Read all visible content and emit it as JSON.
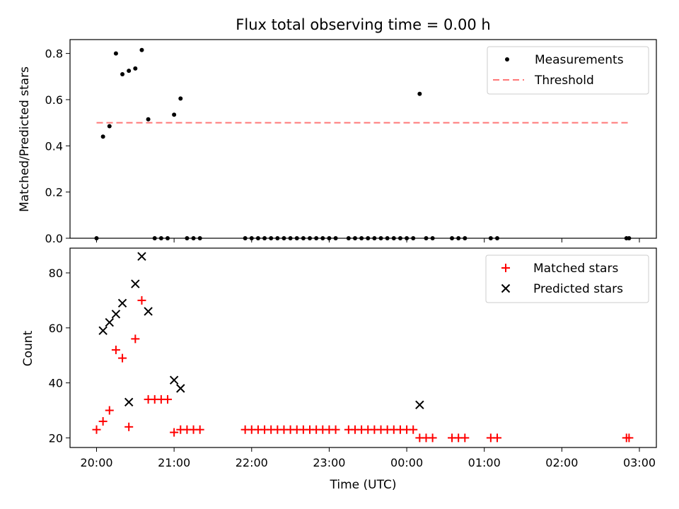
{
  "chart_data": [
    {
      "type": "scatter",
      "title": "Flux total observing time = 0.00 h",
      "ylabel": "Matched/Predicted stars",
      "xlabel": "",
      "ylim": [
        0,
        0.86
      ],
      "yticks": [
        "0.0",
        "0.2",
        "0.4",
        "0.6",
        "0.8"
      ],
      "legend": {
        "placement": "upper right",
        "entries": [
          "Measurements",
          "Threshold"
        ]
      },
      "series": [
        {
          "name": "Measurements",
          "marker": "dot",
          "color": "#000000",
          "points": [
            [
              "20:00",
              0
            ],
            [
              "20:05",
              0.44
            ],
            [
              "20:10",
              0.485
            ],
            [
              "20:15",
              0.8
            ],
            [
              "20:20",
              0.71
            ],
            [
              "20:25",
              0.725
            ],
            [
              "20:30",
              0.735
            ],
            [
              "20:35",
              0.815
            ],
            [
              "20:40",
              0.515
            ],
            [
              "20:45",
              0
            ],
            [
              "20:50",
              0
            ],
            [
              "20:55",
              0
            ],
            [
              "21:00",
              0.535
            ],
            [
              "21:05",
              0.605
            ],
            [
              "21:10",
              0
            ],
            [
              "21:15",
              0
            ],
            [
              "21:20",
              0
            ],
            [
              "21:55",
              0
            ],
            [
              "22:00",
              0
            ],
            [
              "22:05",
              0
            ],
            [
              "22:10",
              0
            ],
            [
              "22:15",
              0
            ],
            [
              "22:20",
              0
            ],
            [
              "22:25",
              0
            ],
            [
              "22:30",
              0
            ],
            [
              "22:35",
              0
            ],
            [
              "22:40",
              0
            ],
            [
              "22:45",
              0
            ],
            [
              "22:50",
              0
            ],
            [
              "22:55",
              0
            ],
            [
              "23:00",
              0
            ],
            [
              "23:05",
              0
            ],
            [
              "23:15",
              0
            ],
            [
              "23:20",
              0
            ],
            [
              "23:25",
              0
            ],
            [
              "23:30",
              0
            ],
            [
              "23:35",
              0
            ],
            [
              "23:40",
              0
            ],
            [
              "23:45",
              0
            ],
            [
              "23:50",
              0
            ],
            [
              "23:55",
              0
            ],
            [
              "00:00",
              0
            ],
            [
              "00:05",
              0
            ],
            [
              "00:10",
              0.625
            ],
            [
              "00:15",
              0
            ],
            [
              "00:20",
              0
            ],
            [
              "00:35",
              0
            ],
            [
              "00:40",
              0
            ],
            [
              "00:45",
              0
            ],
            [
              "01:05",
              0
            ],
            [
              "01:10",
              0
            ],
            [
              "02:50",
              0
            ],
            [
              "02:52",
              0
            ]
          ]
        },
        {
          "name": "Threshold",
          "type": "line",
          "style": "dashed",
          "color": "#ff7777",
          "points": [
            [
              "20:00",
              0.5
            ],
            [
              "02:52",
              0.5
            ]
          ]
        }
      ]
    },
    {
      "type": "scatter",
      "title": "",
      "xlabel": "Time (UTC)",
      "ylabel": "Count",
      "ylim": [
        16.5,
        89
      ],
      "yticks": [
        "20",
        "40",
        "60",
        "80"
      ],
      "xticks": [
        "20:00",
        "21:00",
        "22:00",
        "23:00",
        "00:00",
        "01:00",
        "02:00",
        "03:00"
      ],
      "legend": {
        "placement": "upper right",
        "entries": [
          "Matched stars",
          "Predicted stars"
        ]
      },
      "series": [
        {
          "name": "Matched stars",
          "marker": "plus",
          "color": "#ff0000",
          "points": [
            [
              "20:00",
              23
            ],
            [
              "20:05",
              26
            ],
            [
              "20:10",
              30
            ],
            [
              "20:15",
              52
            ],
            [
              "20:20",
              49
            ],
            [
              "20:25",
              24
            ],
            [
              "20:30",
              56
            ],
            [
              "20:35",
              70
            ],
            [
              "20:40",
              34
            ],
            [
              "20:45",
              34
            ],
            [
              "20:50",
              34
            ],
            [
              "20:55",
              34
            ],
            [
              "21:00",
              22
            ],
            [
              "21:05",
              23
            ],
            [
              "21:10",
              23
            ],
            [
              "21:15",
              23
            ],
            [
              "21:20",
              23
            ],
            [
              "21:55",
              23
            ],
            [
              "22:00",
              23
            ],
            [
              "22:05",
              23
            ],
            [
              "22:10",
              23
            ],
            [
              "22:15",
              23
            ],
            [
              "22:20",
              23
            ],
            [
              "22:25",
              23
            ],
            [
              "22:30",
              23
            ],
            [
              "22:35",
              23
            ],
            [
              "22:40",
              23
            ],
            [
              "22:45",
              23
            ],
            [
              "22:50",
              23
            ],
            [
              "22:55",
              23
            ],
            [
              "23:00",
              23
            ],
            [
              "23:05",
              23
            ],
            [
              "23:15",
              23
            ],
            [
              "23:20",
              23
            ],
            [
              "23:25",
              23
            ],
            [
              "23:30",
              23
            ],
            [
              "23:35",
              23
            ],
            [
              "23:40",
              23
            ],
            [
              "23:45",
              23
            ],
            [
              "23:50",
              23
            ],
            [
              "23:55",
              23
            ],
            [
              "00:00",
              23
            ],
            [
              "00:05",
              23
            ],
            [
              "00:10",
              20
            ],
            [
              "00:15",
              20
            ],
            [
              "00:20",
              20
            ],
            [
              "00:35",
              20
            ],
            [
              "00:40",
              20
            ],
            [
              "00:45",
              20
            ],
            [
              "01:05",
              20
            ],
            [
              "01:10",
              20
            ],
            [
              "02:50",
              20
            ],
            [
              "02:52",
              20
            ]
          ]
        },
        {
          "name": "Predicted stars",
          "marker": "x",
          "color": "#000000",
          "points": [
            [
              "20:05",
              59
            ],
            [
              "20:10",
              62
            ],
            [
              "20:15",
              65
            ],
            [
              "20:20",
              69
            ],
            [
              "20:25",
              33
            ],
            [
              "20:30",
              76
            ],
            [
              "20:35",
              86
            ],
            [
              "20:40",
              66
            ],
            [
              "21:00",
              41
            ],
            [
              "21:05",
              38
            ],
            [
              "00:10",
              32
            ]
          ]
        }
      ]
    }
  ]
}
